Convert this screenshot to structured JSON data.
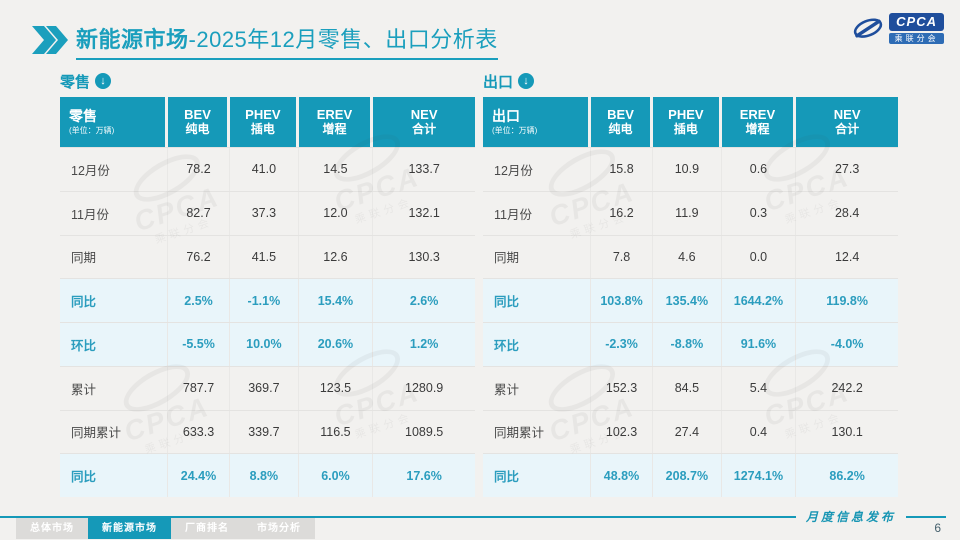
{
  "header": {
    "title_bold": "新能源市场",
    "title_rest": "-2025年12月零售、出口分析表",
    "logo": {
      "brand": "CPCA",
      "brand_cn": "乘联分会"
    }
  },
  "icons": {
    "section_arrow": "↓"
  },
  "tables": [
    {
      "section_label": "零售",
      "corner_label": "零售",
      "unit_note": "(单位：万辆)",
      "columns": [
        {
          "en": "BEV",
          "cn": "纯电"
        },
        {
          "en": "PHEV",
          "cn": "插电"
        },
        {
          "en": "EREV",
          "cn": "增程"
        },
        {
          "en": "NEV",
          "cn": "合计"
        }
      ],
      "rows": [
        {
          "label": "12月份",
          "values": [
            "78.2",
            "41.0",
            "14.5",
            "133.7"
          ],
          "highlight": false
        },
        {
          "label": "11月份",
          "values": [
            "82.7",
            "37.3",
            "12.0",
            "132.1"
          ],
          "highlight": false
        },
        {
          "label": "同期",
          "values": [
            "76.2",
            "41.5",
            "12.6",
            "130.3"
          ],
          "highlight": false
        },
        {
          "label": "同比",
          "values": [
            "2.5%",
            "-1.1%",
            "15.4%",
            "2.6%"
          ],
          "highlight": true
        },
        {
          "label": "环比",
          "values": [
            "-5.5%",
            "10.0%",
            "20.6%",
            "1.2%"
          ],
          "highlight": true
        },
        {
          "label": "累计",
          "values": [
            "787.7",
            "369.7",
            "123.5",
            "1280.9"
          ],
          "highlight": false
        },
        {
          "label": "同期累计",
          "values": [
            "633.3",
            "339.7",
            "116.5",
            "1089.5"
          ],
          "highlight": false
        },
        {
          "label": "同比",
          "values": [
            "24.4%",
            "8.8%",
            "6.0%",
            "17.6%"
          ],
          "highlight": true
        }
      ]
    },
    {
      "section_label": "出口",
      "corner_label": "出口",
      "unit_note": "(单位：万辆)",
      "columns": [
        {
          "en": "BEV",
          "cn": "纯电"
        },
        {
          "en": "PHEV",
          "cn": "插电"
        },
        {
          "en": "EREV",
          "cn": "增程"
        },
        {
          "en": "NEV",
          "cn": "合计"
        }
      ],
      "rows": [
        {
          "label": "12月份",
          "values": [
            "15.8",
            "10.9",
            "0.6",
            "27.3"
          ],
          "highlight": false
        },
        {
          "label": "11月份",
          "values": [
            "16.2",
            "11.9",
            "0.3",
            "28.4"
          ],
          "highlight": false
        },
        {
          "label": "同期",
          "values": [
            "7.8",
            "4.6",
            "0.0",
            "12.4"
          ],
          "highlight": false
        },
        {
          "label": "同比",
          "values": [
            "103.8%",
            "135.4%",
            "1644.2%",
            "119.8%"
          ],
          "highlight": true
        },
        {
          "label": "环比",
          "values": [
            "-2.3%",
            "-8.8%",
            "91.6%",
            "-4.0%"
          ],
          "highlight": true
        },
        {
          "label": "累计",
          "values": [
            "152.3",
            "84.5",
            "5.4",
            "242.2"
          ],
          "highlight": false
        },
        {
          "label": "同期累计",
          "values": [
            "102.3",
            "27.4",
            "0.4",
            "130.1"
          ],
          "highlight": false
        },
        {
          "label": "同比",
          "values": [
            "48.8%",
            "208.7%",
            "1274.1%",
            "86.2%"
          ],
          "highlight": true
        }
      ]
    }
  ],
  "footer": {
    "tabs": [
      {
        "label": "总体市场",
        "active": false
      },
      {
        "label": "新能源市场",
        "active": true
      },
      {
        "label": "厂商排名",
        "active": false
      },
      {
        "label": "市场分析",
        "active": false
      }
    ],
    "publish_label": "月度信息发布",
    "page_number": "6"
  },
  "watermark": {
    "text": "CPCA",
    "subtext": "乘联分会"
  },
  "colors": {
    "accent": "#1599b8",
    "title": "#1b9fbd",
    "highlight_bg": "#e9f5fa",
    "highlight_text": "#2b9dbe",
    "logo_blue": "#1f4e9c"
  }
}
